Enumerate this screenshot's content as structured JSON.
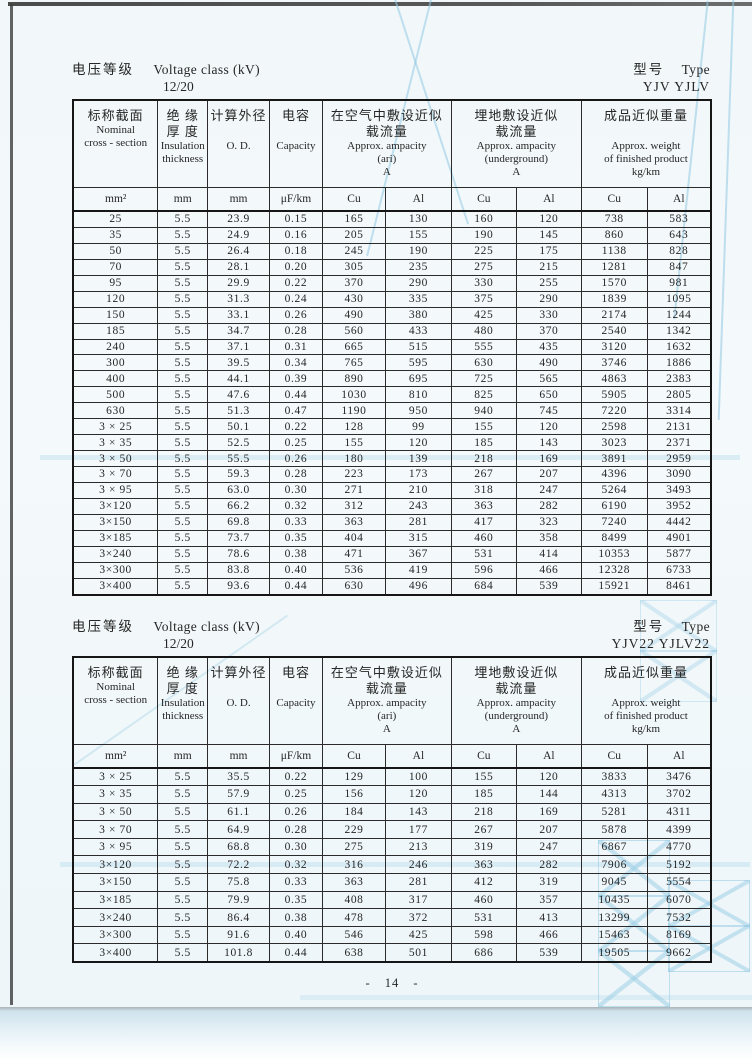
{
  "page": {
    "page_number": "- 14 -"
  },
  "table_header": {
    "col_cross_section": {
      "zh": "标称截面",
      "en1": "Nominal",
      "en2": "cross - section"
    },
    "col_insulation": {
      "zh1": "绝  缘",
      "zh2": "厚  度",
      "en1": "Insulation",
      "en2": "thickness"
    },
    "col_od": {
      "zh": "计算外径",
      "en": "O. D."
    },
    "col_capacity": {
      "zh": "电容",
      "en": "Capacity"
    },
    "col_air": {
      "zh1": "在空气中敷设近似",
      "zh2": "载流量",
      "en1": "Approx. ampacity",
      "en2": "(ari)",
      "en3": "A"
    },
    "col_underground": {
      "zh1": "埋地敷设近似",
      "zh2": "载流量",
      "en1": "Approx. ampacity",
      "en2": "(underground)",
      "en3": "A"
    },
    "col_weight": {
      "zh": "成品近似重量",
      "en1": "Approx. weight",
      "en2": "of finished product",
      "en3": "kg/km"
    },
    "units": [
      "mm²",
      "mm",
      "mm",
      "μF/km",
      "Cu",
      "Al",
      "Cu",
      "Al",
      "Cu",
      "Al"
    ]
  },
  "tables": [
    {
      "meta": {
        "voltage_zh": "电压等级",
        "voltage_en": "Voltage class (kV)",
        "voltage_value": "12/20",
        "type_zh": "型号",
        "type_en": "Type",
        "type_value": "YJV  YJLV"
      },
      "rows": [
        [
          "25",
          "5.5",
          "23.9",
          "0.15",
          "165",
          "130",
          "160",
          "120",
          "738",
          "583"
        ],
        [
          "35",
          "5.5",
          "24.9",
          "0.16",
          "205",
          "155",
          "190",
          "145",
          "860",
          "643"
        ],
        [
          "50",
          "5.5",
          "26.4",
          "0.18",
          "245",
          "190",
          "225",
          "175",
          "1138",
          "828"
        ],
        [
          "70",
          "5.5",
          "28.1",
          "0.20",
          "305",
          "235",
          "275",
          "215",
          "1281",
          "847"
        ],
        [
          "95",
          "5.5",
          "29.9",
          "0.22",
          "370",
          "290",
          "330",
          "255",
          "1570",
          "981"
        ],
        [
          "120",
          "5.5",
          "31.3",
          "0.24",
          "430",
          "335",
          "375",
          "290",
          "1839",
          "1095"
        ],
        [
          "150",
          "5.5",
          "33.1",
          "0.26",
          "490",
          "380",
          "425",
          "330",
          "2174",
          "1244"
        ],
        [
          "185",
          "5.5",
          "34.7",
          "0.28",
          "560",
          "433",
          "480",
          "370",
          "2540",
          "1342"
        ],
        [
          "240",
          "5.5",
          "37.1",
          "0.31",
          "665",
          "515",
          "555",
          "435",
          "3120",
          "1632"
        ],
        [
          "300",
          "5.5",
          "39.5",
          "0.34",
          "765",
          "595",
          "630",
          "490",
          "3746",
          "1886"
        ],
        [
          "400",
          "5.5",
          "44.1",
          "0.39",
          "890",
          "695",
          "725",
          "565",
          "4863",
          "2383"
        ],
        [
          "500",
          "5.5",
          "47.6",
          "0.44",
          "1030",
          "810",
          "825",
          "650",
          "5905",
          "2805"
        ],
        [
          "630",
          "5.5",
          "51.3",
          "0.47",
          "1190",
          "950",
          "940",
          "745",
          "7220",
          "3314"
        ],
        [
          "3 × 25",
          "5.5",
          "50.1",
          "0.22",
          "128",
          "99",
          "155",
          "120",
          "2598",
          "2131"
        ],
        [
          "3 × 35",
          "5.5",
          "52.5",
          "0.25",
          "155",
          "120",
          "185",
          "143",
          "3023",
          "2371"
        ],
        [
          "3 × 50",
          "5.5",
          "55.5",
          "0.26",
          "180",
          "139",
          "218",
          "169",
          "3891",
          "2959"
        ],
        [
          "3 × 70",
          "5.5",
          "59.3",
          "0.28",
          "223",
          "173",
          "267",
          "207",
          "4396",
          "3090"
        ],
        [
          "3 × 95",
          "5.5",
          "63.0",
          "0.30",
          "271",
          "210",
          "318",
          "247",
          "5264",
          "3493"
        ],
        [
          "3×120",
          "5.5",
          "66.2",
          "0.32",
          "312",
          "243",
          "363",
          "282",
          "6190",
          "3952"
        ],
        [
          "3×150",
          "5.5",
          "69.8",
          "0.33",
          "363",
          "281",
          "417",
          "323",
          "7240",
          "4442"
        ],
        [
          "3×185",
          "5.5",
          "73.7",
          "0.35",
          "404",
          "315",
          "460",
          "358",
          "8499",
          "4901"
        ],
        [
          "3×240",
          "5.5",
          "78.6",
          "0.38",
          "471",
          "367",
          "531",
          "414",
          "10353",
          "5877"
        ],
        [
          "3×300",
          "5.5",
          "83.8",
          "0.40",
          "536",
          "419",
          "596",
          "466",
          "12328",
          "6733"
        ],
        [
          "3×400",
          "5.5",
          "93.6",
          "0.44",
          "630",
          "496",
          "684",
          "539",
          "15921",
          "8461"
        ]
      ]
    },
    {
      "meta": {
        "voltage_zh": "电压等级",
        "voltage_en": "Voltage class (kV)",
        "voltage_value": "12/20",
        "type_zh": "型号",
        "type_en": "Type",
        "type_value": "YJV22  YJLV22"
      },
      "rows": [
        [
          "3 × 25",
          "5.5",
          "35.5",
          "0.22",
          "129",
          "100",
          "155",
          "120",
          "3833",
          "3476"
        ],
        [
          "3 × 35",
          "5.5",
          "57.9",
          "0.25",
          "156",
          "120",
          "185",
          "144",
          "4313",
          "3702"
        ],
        [
          "3 × 50",
          "5.5",
          "61.1",
          "0.26",
          "184",
          "143",
          "218",
          "169",
          "5281",
          "4311"
        ],
        [
          "3 × 70",
          "5.5",
          "64.9",
          "0.28",
          "229",
          "177",
          "267",
          "207",
          "5878",
          "4399"
        ],
        [
          "3 × 95",
          "5.5",
          "68.8",
          "0.30",
          "275",
          "213",
          "319",
          "247",
          "6867",
          "4770"
        ],
        [
          "3×120",
          "5.5",
          "72.2",
          "0.32",
          "316",
          "246",
          "363",
          "282",
          "7906",
          "5192"
        ],
        [
          "3×150",
          "5.5",
          "75.8",
          "0.33",
          "363",
          "281",
          "412",
          "319",
          "9045",
          "5554"
        ],
        [
          "3×185",
          "5.5",
          "79.9",
          "0.35",
          "408",
          "317",
          "460",
          "357",
          "10435",
          "6070"
        ],
        [
          "3×240",
          "5.5",
          "86.4",
          "0.38",
          "478",
          "372",
          "531",
          "413",
          "13299",
          "7532"
        ],
        [
          "3×300",
          "5.5",
          "91.6",
          "0.40",
          "546",
          "425",
          "598",
          "466",
          "15463",
          "8169"
        ],
        [
          "3×400",
          "5.5",
          "101.8",
          "0.44",
          "638",
          "501",
          "686",
          "539",
          "19505",
          "9662"
        ]
      ]
    }
  ]
}
